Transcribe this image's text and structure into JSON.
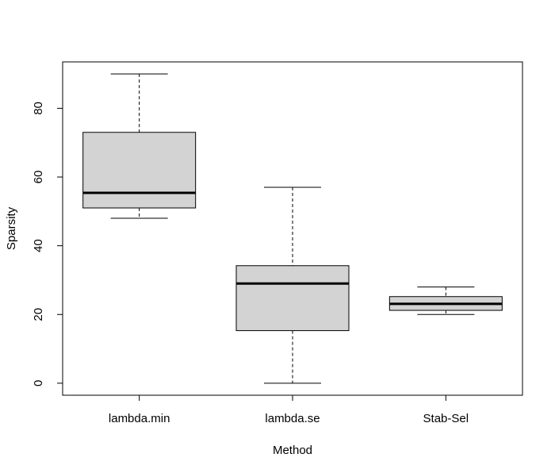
{
  "chart_data": {
    "type": "boxplot",
    "title": "",
    "xlabel": "Method",
    "ylabel": "Sparsity",
    "ylim": [
      -3.5,
      93.5
    ],
    "yticks": [
      0,
      20,
      40,
      60,
      80
    ],
    "categories": [
      "lambda.min",
      "lambda.se",
      "Stab-Sel"
    ],
    "boxes": [
      {
        "label": "lambda.min",
        "min": 48,
        "q1": 51,
        "median": 55.4,
        "q3": 73,
        "max": 90
      },
      {
        "label": "lambda.se",
        "min": 0,
        "q1": 15.3,
        "median": 29,
        "q3": 34.2,
        "max": 57
      },
      {
        "label": "Stab-Sel",
        "min": 20,
        "q1": 21.2,
        "median": 23.1,
        "q3": 25.2,
        "max": 28
      }
    ],
    "box_fill": "#d3d3d3",
    "grid": false,
    "legend": "none"
  }
}
